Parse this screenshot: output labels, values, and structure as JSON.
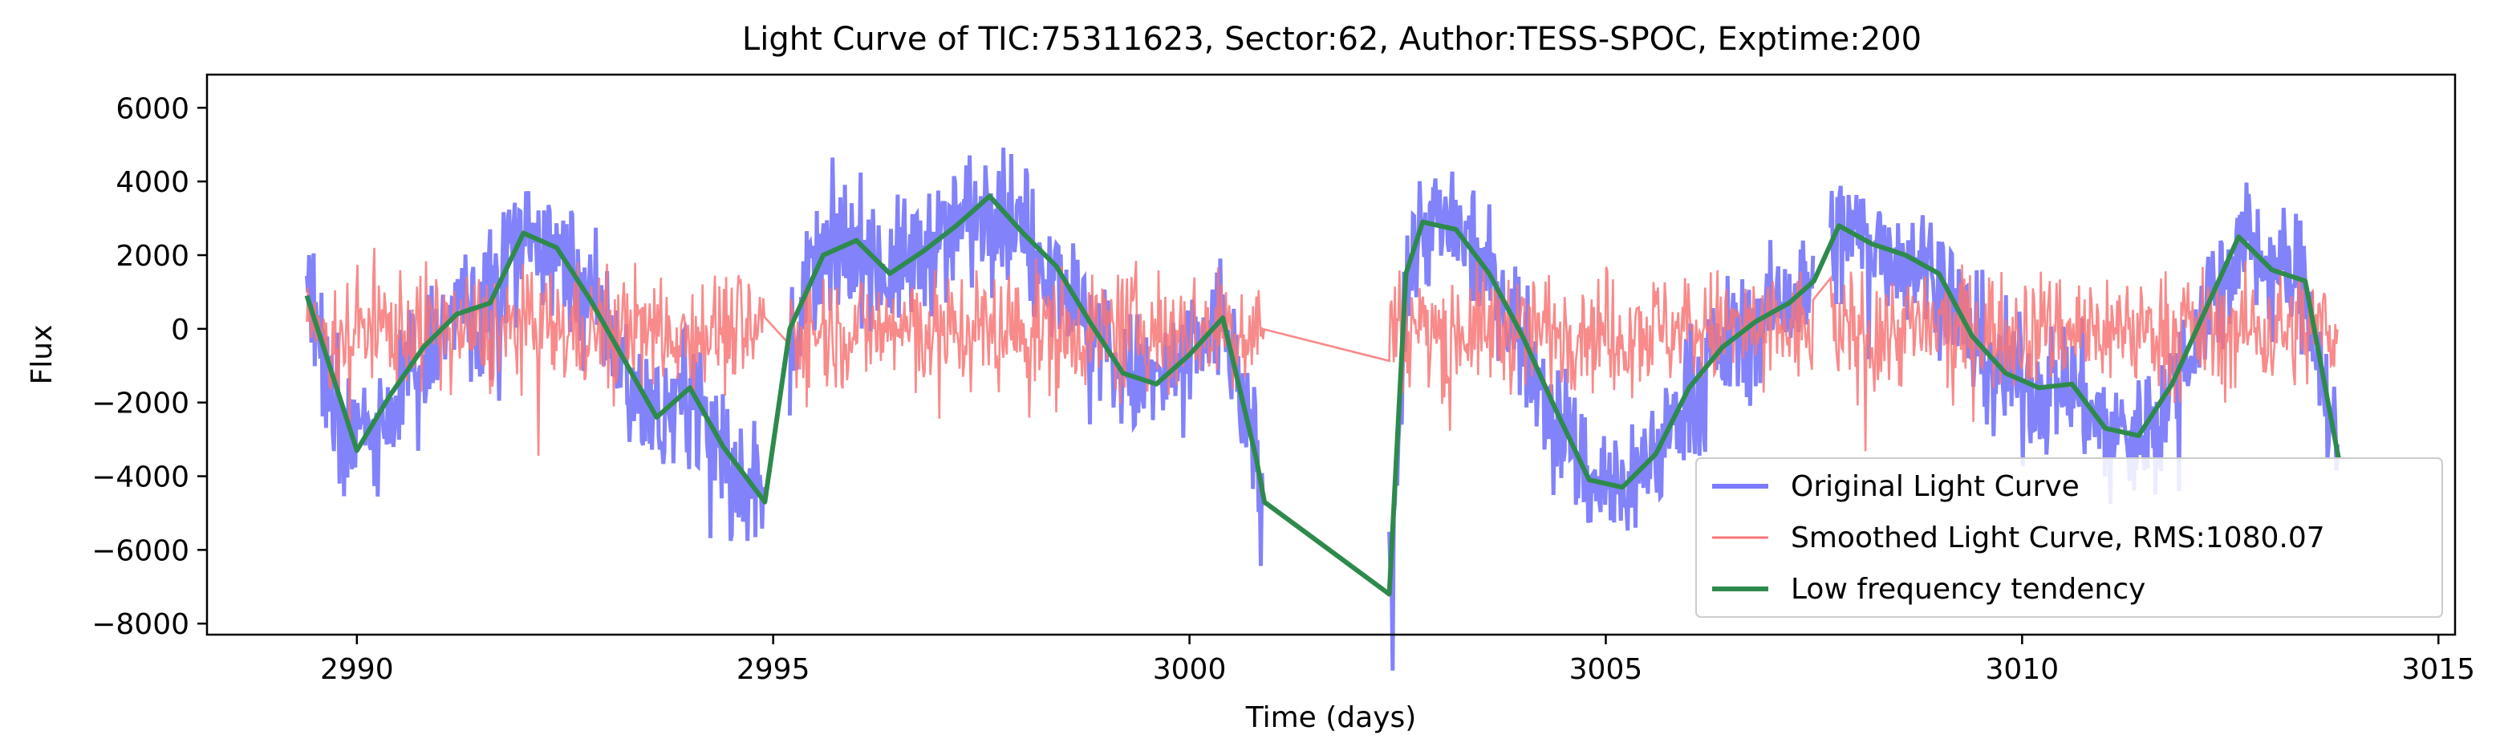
{
  "chart_data": {
    "type": "line",
    "title": "Light Curve of TIC:75311623, Sector:62, Author:TESS-SPOC, Exptime:200",
    "xlabel": "Time (days)",
    "ylabel": "Flux",
    "xlim": [
      2988.2,
      3015.2
    ],
    "ylim": [
      -8300,
      6900
    ],
    "xticks": [
      2990,
      2995,
      3000,
      3005,
      3010,
      3015
    ],
    "yticks": [
      -8000,
      -6000,
      -4000,
      -2000,
      0,
      2000,
      4000,
      6000
    ],
    "xtick_labels": [
      "2990",
      "2995",
      "3000",
      "3005",
      "3010",
      "3015"
    ],
    "ytick_labels": [
      "−8000",
      "−6000",
      "−4000",
      "−2000",
      "0",
      "2000",
      "4000",
      "6000"
    ],
    "grid": false,
    "legend_position": "lower-right",
    "series": [
      {
        "name": "Original Light Curve",
        "color": "#7b7bfb",
        "x": [
          2989.4,
          2990.0,
          2990.4,
          2990.8,
          2991.2,
          2991.6,
          2992.0,
          2992.4,
          2992.8,
          2993.2,
          2993.6,
          2994.0,
          2994.4,
          2994.9,
          2995.2,
          2995.6,
          2996.0,
          2996.4,
          2996.8,
          2997.2,
          2997.6,
          2998.0,
          2998.4,
          2998.8,
          2999.2,
          2999.6,
          3000.0,
          3000.4,
          3000.8,
          3000.9,
          3002.4,
          3002.6,
          3002.8,
          3003.2,
          3003.6,
          3004.0,
          3004.4,
          3004.8,
          3005.2,
          3005.6,
          3006.0,
          3006.4,
          3006.8,
          3007.2,
          3007.5,
          3007.8,
          3008.2,
          3008.6,
          3009.0,
          3009.4,
          3009.8,
          3010.2,
          3010.6,
          3011.0,
          3011.4,
          3011.8,
          3012.2,
          3012.6,
          3013.0,
          3013.4,
          3013.8
        ],
        "y": [
          900,
          -3300,
          -1800,
          -500,
          400,
          700,
          2600,
          2200,
          800,
          -800,
          -2400,
          -1600,
          -3200,
          -4700,
          0,
          2000,
          2400,
          1500,
          2100,
          2800,
          3600,
          2600,
          1700,
          200,
          -1200,
          -1500,
          -700,
          300,
          -3500,
          -4700,
          -7200,
          1500,
          2900,
          2700,
          1500,
          -200,
          -2200,
          -4100,
          -4300,
          -3400,
          -1600,
          -500,
          200,
          700,
          1300,
          2800,
          2300,
          2000,
          1500,
          -200,
          -1200,
          -1600,
          -1500,
          -2700,
          -2900,
          -1500,
          500,
          2500,
          1600,
          1300,
          -3500
        ],
        "amplitude": 1100
      },
      {
        "name": "Smoothed Light Curve, RMS:1080.07",
        "color": "#f87676",
        "x": [
          2989.4,
          2994.9,
          2995.2,
          3000.9,
          3002.4,
          3007.5,
          3007.7,
          3013.8
        ],
        "y": [
          0,
          0,
          0,
          0,
          0,
          0,
          0,
          0
        ],
        "amplitude": 1080.07
      },
      {
        "name": "Low frequency tendency",
        "color": "#2e8a4c",
        "x": [
          2989.4,
          2990.0,
          2990.4,
          2990.8,
          2991.2,
          2991.6,
          2992.0,
          2992.4,
          2992.8,
          2993.2,
          2993.6,
          2994.0,
          2994.4,
          2994.9,
          2995.2,
          2995.6,
          2996.0,
          2996.4,
          2996.8,
          2997.2,
          2997.6,
          2998.0,
          2998.4,
          2998.8,
          2999.2,
          2999.6,
          3000.0,
          3000.4,
          3000.8,
          3000.9,
          3002.4,
          3002.6,
          3002.8,
          3003.2,
          3003.6,
          3004.0,
          3004.4,
          3004.8,
          3005.2,
          3005.6,
          3006.0,
          3006.4,
          3006.8,
          3007.2,
          3007.5,
          3007.8,
          3008.2,
          3008.6,
          3009.0,
          3009.4,
          3009.8,
          3010.2,
          3010.6,
          3011.0,
          3011.4,
          3011.8,
          3012.2,
          3012.6,
          3013.0,
          3013.4,
          3013.8
        ],
        "y": [
          900,
          -3300,
          -1800,
          -500,
          400,
          700,
          2600,
          2200,
          800,
          -800,
          -2400,
          -1600,
          -3200,
          -4700,
          0,
          2000,
          2400,
          1500,
          2100,
          2800,
          3600,
          2600,
          1700,
          200,
          -1200,
          -1500,
          -700,
          300,
          -3500,
          -4700,
          -7200,
          1500,
          2900,
          2700,
          1500,
          -200,
          -2200,
          -4100,
          -4300,
          -3400,
          -1600,
          -500,
          200,
          700,
          1300,
          2800,
          2300,
          2000,
          1500,
          -200,
          -1200,
          -1600,
          -1500,
          -2700,
          -2900,
          -1500,
          500,
          2500,
          1600,
          1300,
          -3500
        ]
      }
    ]
  }
}
